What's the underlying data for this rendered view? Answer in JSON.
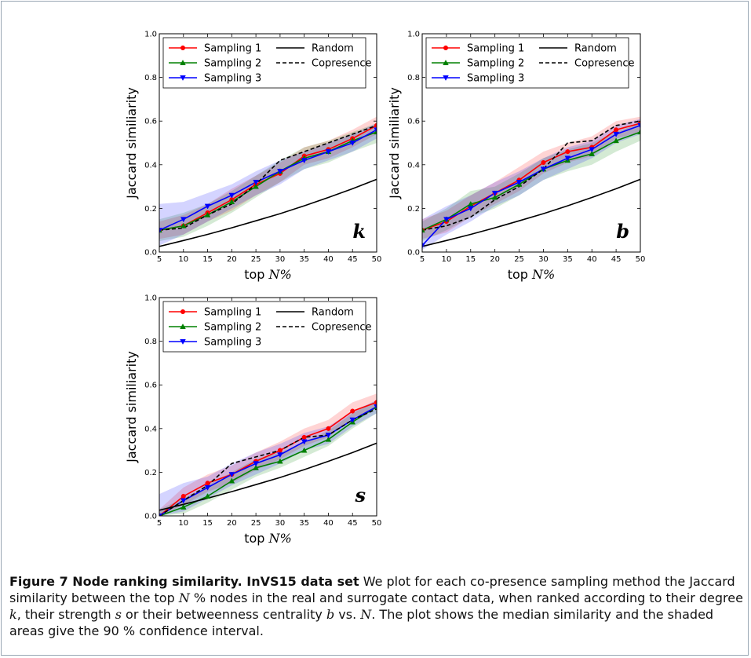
{
  "chart_data": [
    {
      "type": "line",
      "panel_label": "k",
      "xlabel_prefix": "top ",
      "xlabel_math": "N%",
      "ylabel": "Jaccard similiarity",
      "x": [
        5,
        10,
        15,
        20,
        25,
        30,
        35,
        40,
        45,
        50
      ],
      "xlim": [
        5,
        50
      ],
      "ylim": [
        0.0,
        1.0
      ],
      "xticks": [
        "5",
        "10",
        "15",
        "20",
        "25",
        "30",
        "35",
        "40",
        "45",
        "50"
      ],
      "yticks": [
        "0.0",
        "0.2",
        "0.4",
        "0.6",
        "0.8",
        "1.0"
      ],
      "legend_position": "top-left",
      "series": [
        {
          "name": "Sampling 1",
          "color": "#ff0000",
          "marker": "circle",
          "values": [
            0.1,
            0.12,
            0.18,
            0.24,
            0.31,
            0.36,
            0.44,
            0.47,
            0.52,
            0.58
          ],
          "band_lower": [
            0.06,
            0.08,
            0.14,
            0.19,
            0.26,
            0.32,
            0.4,
            0.43,
            0.48,
            0.54
          ],
          "band_upper": [
            0.14,
            0.17,
            0.22,
            0.29,
            0.35,
            0.41,
            0.48,
            0.51,
            0.56,
            0.62
          ]
        },
        {
          "name": "Sampling 2",
          "color": "#008000",
          "marker": "triangle-up",
          "values": [
            0.1,
            0.12,
            0.17,
            0.23,
            0.3,
            0.37,
            0.43,
            0.46,
            0.51,
            0.55
          ],
          "band_lower": [
            0.05,
            0.07,
            0.12,
            0.18,
            0.25,
            0.32,
            0.38,
            0.41,
            0.46,
            0.5
          ],
          "band_upper": [
            0.15,
            0.18,
            0.22,
            0.28,
            0.35,
            0.42,
            0.48,
            0.51,
            0.55,
            0.59
          ]
        },
        {
          "name": "Sampling 3",
          "color": "#0000ff",
          "marker": "triangle-down",
          "values": [
            0.1,
            0.15,
            0.21,
            0.26,
            0.32,
            0.37,
            0.42,
            0.46,
            0.5,
            0.56
          ],
          "band_lower": [
            0.03,
            0.08,
            0.14,
            0.2,
            0.26,
            0.31,
            0.38,
            0.42,
            0.46,
            0.52
          ],
          "band_upper": [
            0.22,
            0.23,
            0.27,
            0.31,
            0.37,
            0.42,
            0.46,
            0.5,
            0.54,
            0.59
          ]
        },
        {
          "name": "Random",
          "color": "#000000",
          "style": "solid",
          "values": [
            0.026,
            0.053,
            0.081,
            0.111,
            0.143,
            0.176,
            0.212,
            0.25,
            0.29,
            0.333
          ]
        },
        {
          "name": "Copresence",
          "color": "#000000",
          "style": "dashed",
          "values": [
            0.1,
            0.11,
            0.17,
            0.22,
            0.31,
            0.42,
            0.46,
            0.5,
            0.54,
            0.58
          ]
        }
      ]
    },
    {
      "type": "line",
      "panel_label": "b",
      "xlabel_prefix": "top ",
      "xlabel_math": "N%",
      "ylabel": "Jaccard similiarity",
      "x": [
        5,
        10,
        15,
        20,
        25,
        30,
        35,
        40,
        45,
        50
      ],
      "xlim": [
        5,
        50
      ],
      "ylim": [
        0.0,
        1.0
      ],
      "xticks": [
        "5",
        "10",
        "15",
        "20",
        "25",
        "30",
        "35",
        "40",
        "45",
        "50"
      ],
      "yticks": [
        "0.0",
        "0.2",
        "0.4",
        "0.6",
        "0.8",
        "1.0"
      ],
      "legend_position": "top-left",
      "series": [
        {
          "name": "Sampling 1",
          "color": "#ff0000",
          "marker": "circle",
          "values": [
            0.1,
            0.14,
            0.21,
            0.27,
            0.33,
            0.41,
            0.46,
            0.48,
            0.56,
            0.59
          ],
          "band_lower": [
            0.06,
            0.09,
            0.16,
            0.22,
            0.28,
            0.36,
            0.41,
            0.44,
            0.52,
            0.55
          ],
          "band_upper": [
            0.15,
            0.19,
            0.26,
            0.32,
            0.39,
            0.46,
            0.5,
            0.53,
            0.6,
            0.62
          ]
        },
        {
          "name": "Sampling 2",
          "color": "#008000",
          "marker": "triangle-up",
          "values": [
            0.1,
            0.15,
            0.22,
            0.25,
            0.31,
            0.38,
            0.42,
            0.45,
            0.51,
            0.55
          ],
          "band_lower": [
            0.05,
            0.1,
            0.16,
            0.2,
            0.26,
            0.33,
            0.37,
            0.4,
            0.46,
            0.51
          ],
          "band_upper": [
            0.14,
            0.2,
            0.28,
            0.3,
            0.36,
            0.43,
            0.47,
            0.5,
            0.55,
            0.59
          ]
        },
        {
          "name": "Sampling 3",
          "color": "#0000ff",
          "marker": "triangle-down",
          "values": [
            0.03,
            0.15,
            0.2,
            0.27,
            0.32,
            0.38,
            0.43,
            0.47,
            0.54,
            0.58
          ],
          "band_lower": [
            0.01,
            0.08,
            0.14,
            0.21,
            0.26,
            0.33,
            0.38,
            0.43,
            0.5,
            0.54
          ],
          "band_upper": [
            0.15,
            0.21,
            0.26,
            0.32,
            0.37,
            0.43,
            0.48,
            0.51,
            0.58,
            0.61
          ]
        },
        {
          "name": "Random",
          "color": "#000000",
          "style": "solid",
          "values": [
            0.026,
            0.053,
            0.081,
            0.111,
            0.143,
            0.176,
            0.212,
            0.25,
            0.29,
            0.333
          ]
        },
        {
          "name": "Copresence",
          "color": "#000000",
          "style": "dashed",
          "values": [
            0.1,
            0.12,
            0.16,
            0.24,
            0.3,
            0.38,
            0.5,
            0.51,
            0.58,
            0.6
          ]
        }
      ]
    },
    {
      "type": "line",
      "panel_label": "s",
      "xlabel_prefix": "top ",
      "xlabel_math": "N%",
      "ylabel": "Jaccard similiarity",
      "x": [
        5,
        10,
        15,
        20,
        25,
        30,
        35,
        40,
        45,
        50
      ],
      "xlim": [
        5,
        50
      ],
      "ylim": [
        0.0,
        1.0
      ],
      "xticks": [
        "5",
        "10",
        "15",
        "20",
        "25",
        "30",
        "35",
        "40",
        "45",
        "50"
      ],
      "yticks": [
        "0.0",
        "0.2",
        "0.4",
        "0.6",
        "0.8",
        "1.0"
      ],
      "legend_position": "top-left",
      "series": [
        {
          "name": "Sampling 1",
          "color": "#ff0000",
          "marker": "circle",
          "values": [
            0.0,
            0.09,
            0.15,
            0.19,
            0.25,
            0.3,
            0.36,
            0.4,
            0.48,
            0.52
          ],
          "band_lower": [
            0.0,
            0.05,
            0.11,
            0.15,
            0.21,
            0.26,
            0.32,
            0.36,
            0.45,
            0.49
          ],
          "band_upper": [
            0.03,
            0.13,
            0.19,
            0.23,
            0.29,
            0.34,
            0.4,
            0.44,
            0.52,
            0.56
          ]
        },
        {
          "name": "Sampling 2",
          "color": "#008000",
          "marker": "triangle-up",
          "values": [
            0.0,
            0.04,
            0.09,
            0.16,
            0.22,
            0.25,
            0.3,
            0.35,
            0.43,
            0.5
          ],
          "band_lower": [
            0.0,
            0.01,
            0.06,
            0.12,
            0.18,
            0.22,
            0.27,
            0.32,
            0.4,
            0.47
          ],
          "band_upper": [
            0.03,
            0.08,
            0.14,
            0.2,
            0.26,
            0.29,
            0.34,
            0.39,
            0.47,
            0.53
          ]
        },
        {
          "name": "Sampling 3",
          "color": "#0000ff",
          "marker": "triangle-down",
          "values": [
            0.0,
            0.07,
            0.13,
            0.19,
            0.24,
            0.28,
            0.34,
            0.37,
            0.44,
            0.5
          ],
          "band_lower": [
            0.0,
            0.02,
            0.08,
            0.14,
            0.19,
            0.24,
            0.3,
            0.33,
            0.41,
            0.47
          ],
          "band_upper": [
            0.1,
            0.15,
            0.18,
            0.24,
            0.29,
            0.33,
            0.38,
            0.41,
            0.48,
            0.53
          ]
        },
        {
          "name": "Random",
          "color": "#000000",
          "style": "solid",
          "values": [
            0.026,
            0.053,
            0.081,
            0.111,
            0.143,
            0.176,
            0.212,
            0.25,
            0.29,
            0.333
          ]
        },
        {
          "name": "Copresence",
          "color": "#000000",
          "style": "dashed",
          "values": [
            0.0,
            0.07,
            0.14,
            0.24,
            0.27,
            0.3,
            0.36,
            0.37,
            0.44,
            0.49
          ]
        }
      ]
    }
  ],
  "caption": {
    "figure_number": "Figure 7",
    "title": "Node ranking similarity. InVS15 data set",
    "parts": [
      " We plot for each co-presence sampling method the Jaccard similarity between the top ",
      "N",
      " % nodes in the real and surrogate contact data, when ranked according to their degree ",
      "k",
      ", their strength ",
      "s",
      " or their betweenness centrality ",
      "b",
      " vs. ",
      "N",
      ". The plot shows the median similarity and the shaded areas give the ",
      "90",
      " % confidence interval."
    ]
  }
}
